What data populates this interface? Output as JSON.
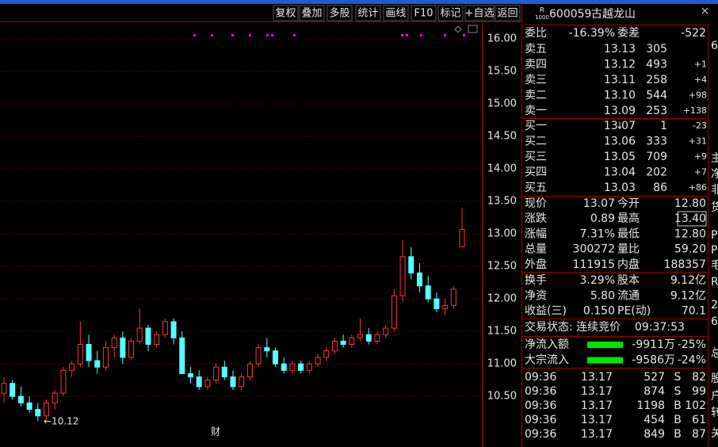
{
  "toolbar": [
    "复权",
    "叠加",
    "多股",
    "统计",
    "画线",
    "F10",
    "标记",
    "+自选",
    "返回"
  ],
  "stock": {
    "badge_top": "R",
    "badge_bottom": "1000",
    "code": "600059",
    "name": "古越龙山"
  },
  "committee": {
    "ratio_label": "委比",
    "ratio": "-16.39%",
    "diff_label": "委差",
    "diff": "-522"
  },
  "asks": [
    {
      "label": "卖五",
      "price": "13.13",
      "volume": "305"
    },
    {
      "label": "卖四",
      "price": "13.12",
      "volume": "493",
      "change": "+1"
    },
    {
      "label": "卖三",
      "price": "13.11",
      "volume": "258",
      "change": "+4"
    },
    {
      "label": "卖二",
      "price": "13.10",
      "volume": "544",
      "change": "+98"
    },
    {
      "label": "卖一",
      "price": "13.09",
      "volume": "253",
      "change": "+138"
    }
  ],
  "bids": [
    {
      "label": "买一",
      "price": "13.07",
      "arrow": "↓",
      "volume": "1",
      "change": "-23"
    },
    {
      "label": "买二",
      "price": "13.06",
      "volume": "333",
      "change": "+31"
    },
    {
      "label": "买三",
      "price": "13.05",
      "volume": "709",
      "change": "+9"
    },
    {
      "label": "买四",
      "price": "13.04",
      "volume": "202",
      "change": "+7"
    },
    {
      "label": "买五",
      "price": "13.03",
      "volume": "86",
      "change": "+86"
    }
  ],
  "quote": [
    [
      "现价",
      "13.07",
      "今开",
      "12.80"
    ],
    [
      "涨跌",
      "0.89",
      "最高",
      "13.40"
    ],
    [
      "涨幅",
      "7.31%",
      "最低",
      "12.80"
    ],
    [
      "总量",
      "300272",
      "量比",
      "59.20"
    ],
    [
      "外盘",
      "111915",
      "内盘",
      "188357"
    ]
  ],
  "fundamentals": [
    [
      "换手",
      "3.29%",
      "股本",
      "9.12亿"
    ],
    [
      "净资",
      "5.80",
      "流通",
      "9.12亿"
    ],
    [
      "收益(三)",
      "0.150",
      "PE(动)",
      "70.1"
    ]
  ],
  "status": {
    "text": "交易状态: 连续竞价",
    "time": "09:37:53"
  },
  "flows": [
    [
      "净流入额",
      "-9911万",
      "-25%"
    ],
    [
      "大宗流入",
      "-9586万",
      "-24%"
    ]
  ],
  "trades": [
    [
      "09:36",
      "13.17",
      "527",
      "S",
      "82"
    ],
    [
      "09:36",
      "13.17",
      "874",
      "S",
      "99"
    ],
    [
      "09:36",
      "13.17",
      "1198",
      "B",
      "102"
    ],
    [
      "09:36",
      "13.17",
      "454",
      "B",
      "61"
    ],
    [
      "09:36",
      "13.17",
      "849",
      "B",
      "87"
    ]
  ],
  "edge_column": [
    "6",
    "主",
    "净",
    "非",
    "货",
    "P",
    "P",
    "毛",
    "R",
    "2",
    "6",
    "总",
    "股",
    "户",
    "转",
    "关"
  ],
  "chart": {
    "type": "candlestick",
    "annotation": "←10.12",
    "marker": "财",
    "ylim": [
      9.77,
      16.27
    ],
    "yticks": [
      {
        "value": 10.5,
        "label": "10.50"
      },
      {
        "value": 11,
        "label": "11.00"
      },
      {
        "value": 11.5,
        "label": "11.50"
      },
      {
        "value": 12,
        "label": "12.00"
      },
      {
        "value": 12.5,
        "label": "12.50"
      },
      {
        "value": 13,
        "label": "13.00"
      },
      {
        "value": 13.5,
        "label": "13.50"
      },
      {
        "value": 14,
        "label": "14.00"
      },
      {
        "value": 14.5,
        "label": "14.50"
      },
      {
        "value": 15,
        "label": "15.00"
      },
      {
        "value": 15.5,
        "label": "15.50"
      },
      {
        "value": 16,
        "label": "16.00"
      }
    ],
    "up_color": "#ff3232",
    "down_color": "#54ffff",
    "candles": [
      [
        10.55,
        10.8,
        10.4,
        10.7
      ],
      [
        10.7,
        10.75,
        10.45,
        10.5
      ],
      [
        10.5,
        10.65,
        10.35,
        10.4
      ],
      [
        10.4,
        10.5,
        10.25,
        10.3
      ],
      [
        10.3,
        10.4,
        10.12,
        10.2
      ],
      [
        10.2,
        10.45,
        10.15,
        10.4
      ],
      [
        10.4,
        10.6,
        10.3,
        10.55
      ],
      [
        10.55,
        10.95,
        10.5,
        10.9
      ],
      [
        10.9,
        11.05,
        10.8,
        11
      ],
      [
        11,
        11.65,
        10.95,
        11.3
      ],
      [
        11.3,
        11.45,
        10.95,
        11.05
      ],
      [
        11.05,
        11.2,
        10.85,
        10.95
      ],
      [
        10.95,
        11.35,
        10.9,
        11.25
      ],
      [
        11.25,
        11.45,
        11.1,
        11.4
      ],
      [
        11.4,
        11.5,
        11,
        11.1
      ],
      [
        11.1,
        11.4,
        11.05,
        11.35
      ],
      [
        11.35,
        11.85,
        11.3,
        11.55
      ],
      [
        11.55,
        11.6,
        11.2,
        11.3
      ],
      [
        11.3,
        11.5,
        11.25,
        11.45
      ],
      [
        11.45,
        11.7,
        11.4,
        11.65
      ],
      [
        11.65,
        11.7,
        11.3,
        11.4
      ],
      [
        11.4,
        11.5,
        10.85,
        10.85
      ],
      [
        10.85,
        10.95,
        10.7,
        10.8
      ],
      [
        10.8,
        10.9,
        10.6,
        10.65
      ],
      [
        10.65,
        10.8,
        10.6,
        10.75
      ],
      [
        10.75,
        11,
        10.7,
        10.95
      ],
      [
        10.95,
        11.05,
        10.75,
        10.8
      ],
      [
        10.8,
        10.9,
        10.6,
        10.65
      ],
      [
        10.65,
        10.85,
        10.6,
        10.8
      ],
      [
        10.8,
        11.05,
        10.75,
        11
      ],
      [
        11,
        11.3,
        10.95,
        11.25
      ],
      [
        11.25,
        11.4,
        11.1,
        11.2
      ],
      [
        11.2,
        11.25,
        10.95,
        11
      ],
      [
        11,
        11.1,
        10.85,
        10.9
      ],
      [
        10.9,
        11.05,
        10.85,
        11
      ],
      [
        11,
        11.05,
        10.85,
        10.9
      ],
      [
        10.9,
        11.05,
        10.85,
        11
      ],
      [
        11,
        11.15,
        10.95,
        11.1
      ],
      [
        11.1,
        11.25,
        11.05,
        11.2
      ],
      [
        11.2,
        11.4,
        11.15,
        11.35
      ],
      [
        11.35,
        11.45,
        11.25,
        11.3
      ],
      [
        11.3,
        11.45,
        11.25,
        11.4
      ],
      [
        11.4,
        11.7,
        11.35,
        11.45
      ],
      [
        11.45,
        11.55,
        11.3,
        11.35
      ],
      [
        11.35,
        11.5,
        11.3,
        11.45
      ],
      [
        11.45,
        11.6,
        11.4,
        11.55
      ],
      [
        11.55,
        12.15,
        11.5,
        12.05
      ],
      [
        12.05,
        12.9,
        11.95,
        12.65
      ],
      [
        12.65,
        12.8,
        12.3,
        12.4
      ],
      [
        12.4,
        12.55,
        12.1,
        12.2
      ],
      [
        12.2,
        12.35,
        11.95,
        12
      ],
      [
        12,
        12.1,
        11.8,
        11.85
      ],
      [
        11.85,
        12,
        11.75,
        11.9
      ],
      [
        11.9,
        12.2,
        11.85,
        12.15
      ],
      [
        12.8,
        13.4,
        12.8,
        13.07
      ]
    ]
  }
}
